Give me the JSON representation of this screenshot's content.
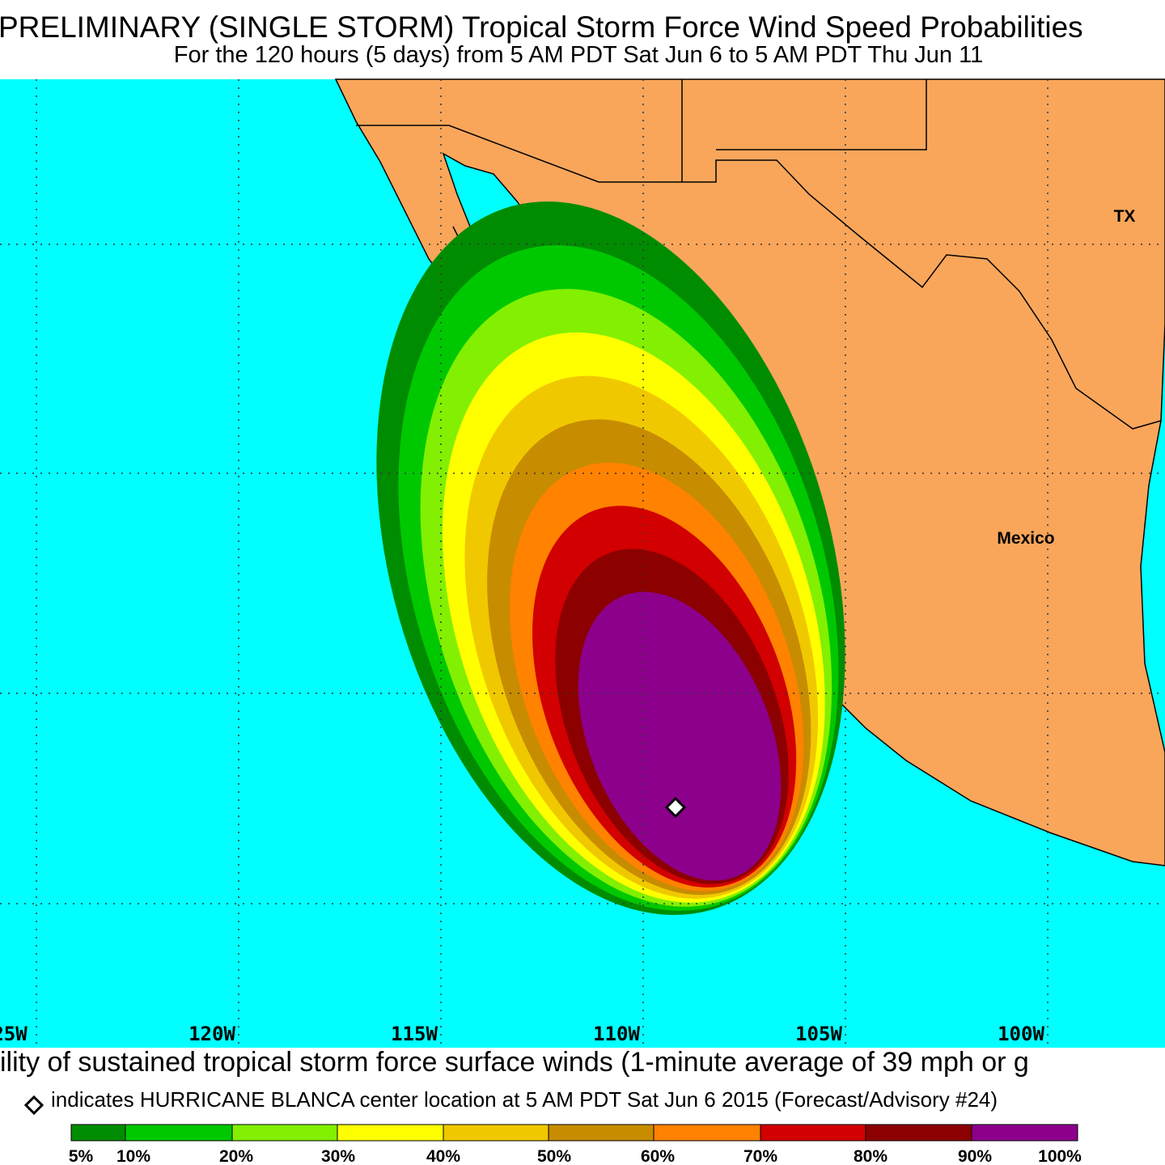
{
  "header": {
    "title": "PRELIMINARY (SINGLE STORM) Tropical Storm Force Wind Speed Probabilities",
    "subtitle": "For the 120 hours (5 days) from 5 AM PDT Sat Jun 6 to 5 AM PDT Thu Jun 11"
  },
  "map": {
    "longitude_labels": [
      "25W",
      "120W",
      "115W",
      "110W",
      "105W",
      "100W"
    ],
    "place_labels": [
      "TX",
      "Mexico"
    ]
  },
  "caption": "ility of sustained tropical storm force surface winds (1-minute average of 39 mph or g",
  "marker_note": "indicates HURRICANE BLANCA center location at 5 AM PDT Sat Jun 6 2015 (Forecast/Advisory #24)",
  "legend": {
    "labels": [
      "5%",
      "10%",
      "20%",
      "30%",
      "40%",
      "50%",
      "60%",
      "70%",
      "80%",
      "90%",
      "100%"
    ],
    "colors": [
      "#008c00",
      "#00c800",
      "#82f000",
      "#ffff00",
      "#f0c800",
      "#c88c00",
      "#ff8200",
      "#d20000",
      "#8c0000",
      "#8c008c"
    ]
  }
}
